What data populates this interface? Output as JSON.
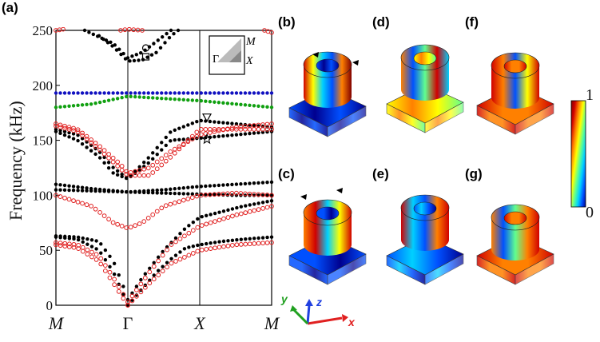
{
  "figure": {
    "panel_labels": [
      "(a)",
      "(b)",
      "(c)",
      "(d)",
      "(e)",
      "(f)",
      "(g)"
    ],
    "colorbar": {
      "max_label": "1",
      "min_label": "0",
      "colors": [
        "#00008f",
        "#0050ff",
        "#00d0ff",
        "#60ff90",
        "#ffff00",
        "#ff8000",
        "#d00000",
        "#800000"
      ]
    },
    "axes_triad": {
      "x": "x",
      "y": "y",
      "z": "z",
      "x_color": "#e02020",
      "y_color": "#20a020",
      "z_color": "#2040e0"
    },
    "inset": {
      "gamma": "Γ",
      "m": "M",
      "x": "X"
    }
  },
  "chart_data": {
    "type": "scatter",
    "ylabel": "Frequency (kHz)",
    "ylim": [
      0,
      250
    ],
    "yticks": [
      0,
      50,
      100,
      150,
      200,
      250
    ],
    "x_ticks": [
      "M",
      "Γ",
      "X",
      "M"
    ],
    "x_tick_positions": [
      0,
      1,
      2,
      3
    ],
    "xlim": [
      0,
      3
    ],
    "markers": {
      "circle_at_gamma_top": {
        "x": 1.25,
        "y": 234
      },
      "square_at_gamma_top": {
        "x": 1.25,
        "y": 226
      },
      "triangle": {
        "x": 2.1,
        "y": 171
      },
      "star": {
        "x": 2.1,
        "y": 151
      }
    },
    "series": [
      {
        "style": "black-dot",
        "color": "#000000",
        "bands": [
          [
            [
              0,
              62
            ],
            [
              0.3,
              60
            ],
            [
              0.6,
              50
            ],
            [
              0.8,
              30
            ],
            [
              0.95,
              8
            ],
            [
              1,
              0
            ]
          ],
          [
            [
              0,
              63
            ],
            [
              0.3,
              62
            ],
            [
              0.6,
              58
            ],
            [
              0.8,
              40
            ],
            [
              0.95,
              15
            ],
            [
              1,
              5
            ]
          ],
          [
            [
              1,
              0
            ],
            [
              1.2,
              15
            ],
            [
              1.4,
              30
            ],
            [
              1.6,
              42
            ],
            [
              1.8,
              52
            ],
            [
              2,
              55
            ],
            [
              2.3,
              58
            ],
            [
              2.6,
              60
            ],
            [
              3,
              62
            ]
          ],
          [
            [
              1,
              5
            ],
            [
              1.2,
              25
            ],
            [
              1.5,
              50
            ],
            [
              1.8,
              70
            ],
            [
              2,
              80
            ],
            [
              2.3,
              85
            ],
            [
              2.6,
              90
            ],
            [
              3,
              95
            ]
          ],
          [
            [
              0,
              110
            ],
            [
              0.5,
              106
            ],
            [
              1,
              103
            ],
            [
              1.5,
              105
            ],
            [
              2,
              108
            ],
            [
              2.5,
              110
            ],
            [
              3,
              112
            ]
          ],
          [
            [
              0,
              105
            ],
            [
              0.5,
              104
            ],
            [
              1,
              103
            ],
            [
              1.5,
              102
            ],
            [
              2,
              101
            ],
            [
              2.5,
              100
            ],
            [
              3,
              100
            ]
          ],
          [
            [
              0,
              160
            ],
            [
              0.3,
              155
            ],
            [
              0.6,
              140
            ],
            [
              0.8,
              125
            ],
            [
              1,
              115
            ],
            [
              1.3,
              130
            ],
            [
              1.6,
              150
            ],
            [
              2,
              152
            ],
            [
              2.5,
              155
            ],
            [
              3,
              158
            ]
          ],
          [
            [
              0,
              158
            ],
            [
              0.3,
              150
            ],
            [
              0.6,
              135
            ],
            [
              0.8,
              120
            ],
            [
              1,
              115
            ],
            [
              1.3,
              135
            ],
            [
              1.6,
              158
            ],
            [
              2,
              168
            ],
            [
              2.5,
              165
            ],
            [
              3,
              162
            ]
          ],
          [
            [
              0.6,
              245
            ],
            [
              0.8,
              235
            ],
            [
              1,
              222
            ],
            [
              1.2,
              223
            ],
            [
              1.4,
              230
            ],
            [
              1.6,
              245
            ],
            [
              1.7,
              250
            ]
          ],
          [
            [
              0.4,
              250
            ],
            [
              0.8,
              238
            ],
            [
              1,
              225
            ],
            [
              1.2,
              230
            ],
            [
              1.6,
              250
            ]
          ]
        ]
      },
      {
        "style": "red-circle",
        "color": "#e02020",
        "bands": [
          [
            [
              0,
              55
            ],
            [
              0.3,
              52
            ],
            [
              0.6,
              40
            ],
            [
              0.8,
              20
            ],
            [
              0.95,
              5
            ],
            [
              1,
              0
            ]
          ],
          [
            [
              0,
              57
            ],
            [
              0.3,
              55
            ],
            [
              0.6,
              45
            ],
            [
              0.8,
              25
            ],
            [
              1,
              3
            ]
          ],
          [
            [
              1,
              0
            ],
            [
              1.3,
              20
            ],
            [
              1.6,
              38
            ],
            [
              2,
              50
            ],
            [
              2.5,
              55
            ],
            [
              3,
              57
            ]
          ],
          [
            [
              1,
              3
            ],
            [
              1.3,
              30
            ],
            [
              1.6,
              55
            ],
            [
              2,
              72
            ],
            [
              2.5,
              82
            ],
            [
              3,
              90
            ]
          ],
          [
            [
              0,
              100
            ],
            [
              0.5,
              90
            ],
            [
              0.8,
              75
            ],
            [
              1,
              70
            ],
            [
              1.2,
              75
            ],
            [
              1.5,
              90
            ],
            [
              2,
              100
            ],
            [
              2.5,
              102
            ],
            [
              3,
              100
            ]
          ],
          [
            [
              0,
              165
            ],
            [
              0.3,
              160
            ],
            [
              0.6,
              145
            ],
            [
              0.9,
              128
            ],
            [
              1,
              120
            ],
            [
              1.3,
              125
            ],
            [
              1.6,
              140
            ],
            [
              2,
              155
            ],
            [
              2.5,
              162
            ],
            [
              3,
              165
            ]
          ],
          [
            [
              0,
              163
            ],
            [
              0.3,
              158
            ],
            [
              0.6,
              142
            ],
            [
              1,
              118
            ],
            [
              1.3,
              118
            ],
            [
              1.6,
              135
            ],
            [
              2,
              160
            ],
            [
              2.5,
              160
            ],
            [
              3,
              160
            ]
          ],
          [
            [
              0,
              250
            ],
            [
              0.1,
              251
            ]
          ],
          [
            [
              0.9,
              250
            ],
            [
              1,
              251
            ],
            [
              1.2,
              250
            ]
          ],
          [
            [
              2.9,
              250
            ],
            [
              3,
              248
            ]
          ]
        ]
      },
      {
        "style": "blue-dot",
        "color": "#1010c0",
        "bands": [
          [
            [
              0,
              193
            ],
            [
              1,
              193
            ],
            [
              2,
              193
            ],
            [
              3,
              193
            ]
          ]
        ]
      },
      {
        "style": "green-dot",
        "color": "#10a010",
        "bands": [
          [
            [
              0,
              180
            ],
            [
              0.5,
              183
            ],
            [
              1,
              190
            ],
            [
              1.5,
              188
            ],
            [
              2,
              186
            ],
            [
              2.5,
              183
            ],
            [
              3,
              180
            ]
          ]
        ]
      }
    ]
  }
}
